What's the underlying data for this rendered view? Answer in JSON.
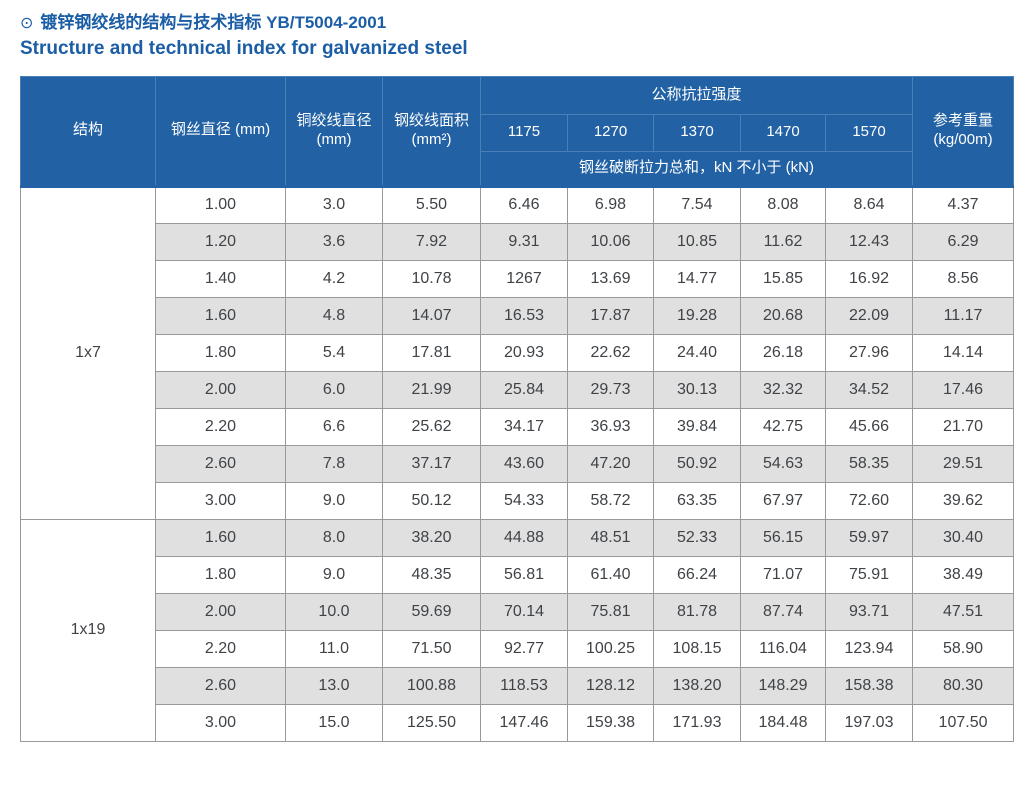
{
  "page": {
    "bullet_icon": "⊙",
    "title_zh": "镀锌钢绞线的结构与技术指标 YB/T5004-2001",
    "title_en": "Structure and technical index for galvanized steel"
  },
  "colors": {
    "accent": "#1b5ea6",
    "header_bg": "#2161a4",
    "header_border": "#4a80b8",
    "row_alt": "#e0e0e0",
    "cell_border": "#999999",
    "cell_text": "#3f4347",
    "header_text": "#ffffff"
  },
  "table": {
    "header": {
      "structure": "结构",
      "wire_diameter": "钢丝直径 (mm)",
      "strand_diameter": {
        "line1": "铜绞线直径",
        "line2": "(mm)"
      },
      "strand_area": {
        "line1": "钢绞线面积",
        "line2": "(mm²)"
      },
      "tensile_group": "公称抗拉强度",
      "tensile_grades": [
        "1175",
        "1270",
        "1370",
        "1470",
        "1570"
      ],
      "tensile_note": "钢丝破断拉力总和，kN 不小于 (kN)",
      "ref_weight": {
        "line1": "参考重量",
        "line2": "(kg/00m)"
      }
    },
    "sections": [
      {
        "structure": "1x7",
        "rows": [
          [
            "1.00",
            "3.0",
            "5.50",
            "6.46",
            "6.98",
            "7.54",
            "8.08",
            "8.64",
            "4.37"
          ],
          [
            "1.20",
            "3.6",
            "7.92",
            "9.31",
            "10.06",
            "10.85",
            "11.62",
            "12.43",
            "6.29"
          ],
          [
            "1.40",
            "4.2",
            "10.78",
            "1267",
            "13.69",
            "14.77",
            "15.85",
            "16.92",
            "8.56"
          ],
          [
            "1.60",
            "4.8",
            "14.07",
            "16.53",
            "17.87",
            "19.28",
            "20.68",
            "22.09",
            "11.17"
          ],
          [
            "1.80",
            "5.4",
            "17.81",
            "20.93",
            "22.62",
            "24.40",
            "26.18",
            "27.96",
            "14.14"
          ],
          [
            "2.00",
            "6.0",
            "21.99",
            "25.84",
            "29.73",
            "30.13",
            "32.32",
            "34.52",
            "17.46"
          ],
          [
            "2.20",
            "6.6",
            "25.62",
            "34.17",
            "36.93",
            "39.84",
            "42.75",
            "45.66",
            "21.70"
          ],
          [
            "2.60",
            "7.8",
            "37.17",
            "43.60",
            "47.20",
            "50.92",
            "54.63",
            "58.35",
            "29.51"
          ],
          [
            "3.00",
            "9.0",
            "50.12",
            "54.33",
            "58.72",
            "63.35",
            "67.97",
            "72.60",
            "39.62"
          ]
        ]
      },
      {
        "structure": "1x19",
        "rows": [
          [
            "1.60",
            "8.0",
            "38.20",
            "44.88",
            "48.51",
            "52.33",
            "56.15",
            "59.97",
            "30.40"
          ],
          [
            "1.80",
            "9.0",
            "48.35",
            "56.81",
            "61.40",
            "66.24",
            "71.07",
            "75.91",
            "38.49"
          ],
          [
            "2.00",
            "10.0",
            "59.69",
            "70.14",
            "75.81",
            "81.78",
            "87.74",
            "93.71",
            "47.51"
          ],
          [
            "2.20",
            "11.0",
            "71.50",
            "92.77",
            "100.25",
            "108.15",
            "116.04",
            "123.94",
            "58.90"
          ],
          [
            "2.60",
            "13.0",
            "100.88",
            "118.53",
            "128.12",
            "138.20",
            "148.29",
            "158.38",
            "80.30"
          ],
          [
            "3.00",
            "15.0",
            "125.50",
            "147.46",
            "159.38",
            "171.93",
            "184.48",
            "197.03",
            "107.50"
          ]
        ]
      }
    ]
  }
}
